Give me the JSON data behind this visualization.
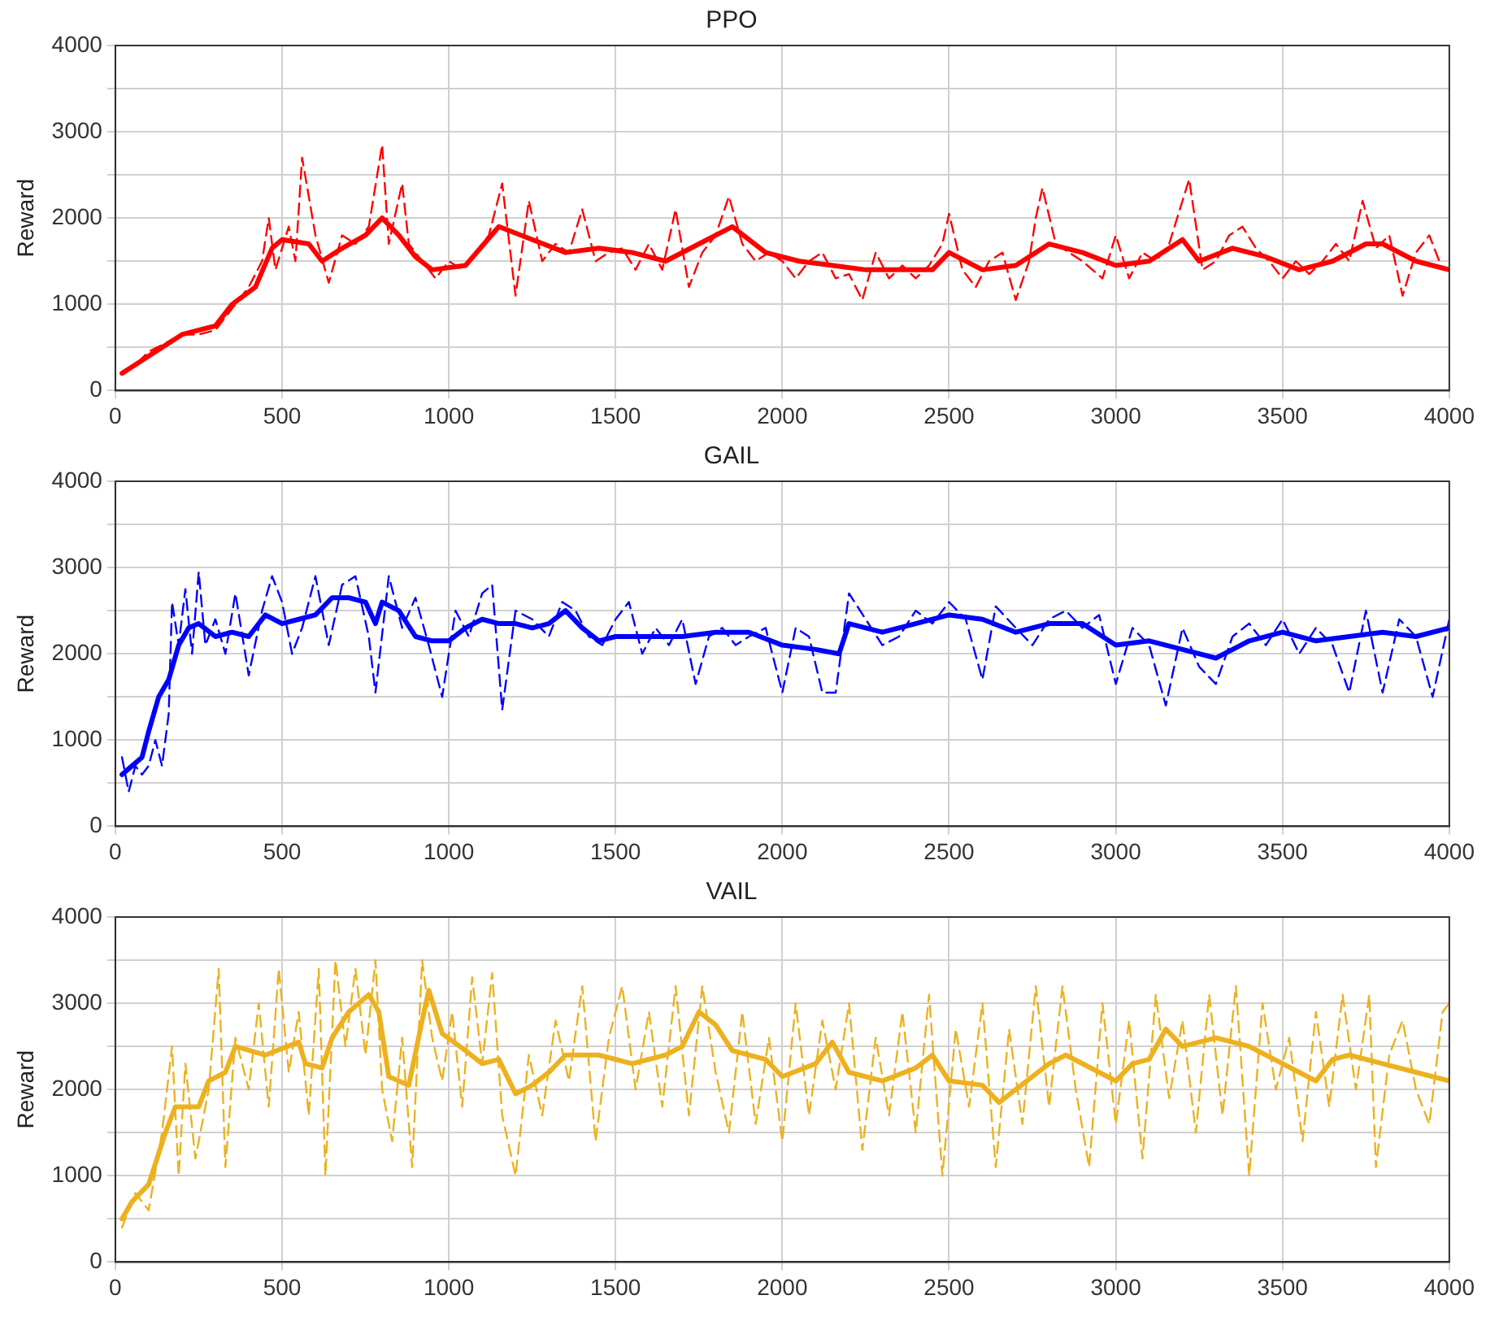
{
  "chart_data": [
    {
      "type": "line",
      "title": "PPO",
      "ylabel": "Reward",
      "xlim": [
        0,
        4000
      ],
      "xticks": [
        0,
        500,
        1000,
        1500,
        2000,
        2500,
        3000,
        3500,
        4000
      ],
      "ylim": [
        0,
        4000
      ],
      "yticks": [
        0,
        {
          "value": 500,
          "label": null
        },
        1000,
        {
          "value": 1500,
          "label": null
        },
        2000,
        {
          "value": 2500,
          "label": null
        },
        3000,
        {
          "value": 3500,
          "label": null
        },
        4000
      ],
      "grid": true,
      "legend": false,
      "marker": "none",
      "series": [
        {
          "color": "#ff0000",
          "line_style": "dashed",
          "x": [
            20,
            60,
            100,
            150,
            200,
            250,
            300,
            350,
            400,
            440,
            460,
            480,
            520,
            540,
            560,
            600,
            640,
            680,
            720,
            760,
            800,
            820,
            860,
            880,
            920,
            960,
            1000,
            1040,
            1080,
            1120,
            1160,
            1200,
            1240,
            1280,
            1320,
            1360,
            1400,
            1440,
            1480,
            1520,
            1560,
            1600,
            1640,
            1680,
            1720,
            1760,
            1800,
            1840,
            1880,
            1920,
            1960,
            2000,
            2040,
            2080,
            2120,
            2160,
            2200,
            2240,
            2280,
            2320,
            2360,
            2400,
            2440,
            2480,
            2500,
            2540,
            2580,
            2620,
            2660,
            2700,
            2740,
            2760,
            2780,
            2820,
            2860,
            2900,
            2960,
            3000,
            3040,
            3080,
            3120,
            3160,
            3200,
            3220,
            3260,
            3300,
            3340,
            3380,
            3420,
            3460,
            3500,
            3540,
            3580,
            3620,
            3660,
            3700,
            3740,
            3780,
            3820,
            3860,
            3900,
            3940,
            3980,
            4000
          ],
          "values": [
            220,
            300,
            450,
            550,
            650,
            650,
            700,
            950,
            1200,
            1500,
            2000,
            1400,
            1900,
            1500,
            2700,
            1800,
            1250,
            1800,
            1700,
            1900,
            2850,
            1700,
            2400,
            1700,
            1500,
            1300,
            1500,
            1400,
            1600,
            1800,
            2400,
            1100,
            2200,
            1500,
            1700,
            1600,
            2100,
            1500,
            1600,
            1650,
            1400,
            1700,
            1400,
            2100,
            1200,
            1600,
            1800,
            2250,
            1700,
            1500,
            1600,
            1500,
            1300,
            1500,
            1600,
            1300,
            1350,
            1050,
            1600,
            1300,
            1450,
            1300,
            1450,
            1700,
            2050,
            1400,
            1200,
            1500,
            1600,
            1050,
            1500,
            2000,
            2350,
            1700,
            1600,
            1500,
            1300,
            1800,
            1300,
            1600,
            1500,
            1700,
            2200,
            2450,
            1400,
            1500,
            1800,
            1900,
            1650,
            1500,
            1300,
            1500,
            1350,
            1500,
            1700,
            1500,
            2200,
            1650,
            1800,
            1100,
            1600,
            1800,
            1400,
            1400
          ]
        },
        {
          "color": "#ff0000",
          "line_style": "solid",
          "x": [
            20,
            100,
            200,
            300,
            350,
            420,
            470,
            500,
            580,
            620,
            680,
            750,
            800,
            850,
            900,
            950,
            1050,
            1150,
            1250,
            1350,
            1450,
            1550,
            1650,
            1750,
            1850,
            1950,
            2050,
            2150,
            2250,
            2350,
            2450,
            2500,
            2600,
            2700,
            2800,
            2900,
            3000,
            3100,
            3200,
            3250,
            3350,
            3450,
            3550,
            3650,
            3750,
            3800,
            3900,
            4000
          ],
          "values": [
            200,
            400,
            650,
            750,
            1000,
            1200,
            1650,
            1750,
            1700,
            1500,
            1650,
            1800,
            2000,
            1800,
            1550,
            1400,
            1450,
            1900,
            1750,
            1600,
            1650,
            1600,
            1500,
            1700,
            1900,
            1600,
            1500,
            1450,
            1400,
            1400,
            1400,
            1600,
            1400,
            1450,
            1700,
            1600,
            1450,
            1500,
            1750,
            1500,
            1650,
            1550,
            1400,
            1500,
            1700,
            1700,
            1500,
            1400
          ]
        }
      ]
    },
    {
      "type": "line",
      "title": "GAIL",
      "ylabel": "Reward",
      "xlim": [
        0,
        4000
      ],
      "xticks": [
        0,
        500,
        1000,
        1500,
        2000,
        2500,
        3000,
        3500,
        4000
      ],
      "ylim": [
        0,
        4000
      ],
      "yticks": [
        0,
        {
          "value": 500,
          "label": null
        },
        1000,
        {
          "value": 1500,
          "label": null
        },
        2000,
        {
          "value": 2500,
          "label": null
        },
        3000,
        {
          "value": 3500,
          "label": null
        },
        4000
      ],
      "grid": true,
      "legend": false,
      "marker": "none",
      "series": [
        {
          "color": "#0000ff",
          "line_style": "dashed",
          "x": [
            20,
            40,
            60,
            80,
            100,
            120,
            140,
            160,
            170,
            190,
            210,
            230,
            250,
            270,
            300,
            330,
            360,
            400,
            440,
            470,
            500,
            530,
            560,
            600,
            640,
            680,
            720,
            760,
            780,
            820,
            860,
            900,
            940,
            980,
            1020,
            1060,
            1100,
            1130,
            1160,
            1200,
            1250,
            1300,
            1340,
            1380,
            1420,
            1460,
            1500,
            1540,
            1580,
            1620,
            1660,
            1700,
            1740,
            1780,
            1820,
            1860,
            1900,
            1950,
            2000,
            2040,
            2080,
            2120,
            2160,
            2200,
            2250,
            2300,
            2350,
            2400,
            2450,
            2500,
            2550,
            2600,
            2640,
            2700,
            2750,
            2800,
            2850,
            2900,
            2950,
            3000,
            3050,
            3100,
            3150,
            3200,
            3250,
            3300,
            3350,
            3400,
            3450,
            3500,
            3550,
            3600,
            3650,
            3700,
            3750,
            3800,
            3850,
            3900,
            3950,
            4000
          ],
          "values": [
            800,
            400,
            700,
            600,
            700,
            1000,
            700,
            1300,
            2600,
            2100,
            2750,
            2000,
            2950,
            2100,
            2400,
            2000,
            2700,
            1750,
            2500,
            2900,
            2600,
            2000,
            2300,
            2900,
            2100,
            2800,
            2900,
            2200,
            1550,
            2900,
            2300,
            2650,
            2100,
            1500,
            2500,
            2200,
            2700,
            2800,
            1350,
            2500,
            2400,
            2200,
            2600,
            2500,
            2200,
            2100,
            2400,
            2600,
            2000,
            2300,
            2100,
            2400,
            1650,
            2200,
            2300,
            2100,
            2200,
            2300,
            1550,
            2300,
            2200,
            1550,
            1550,
            2700,
            2400,
            2100,
            2200,
            2500,
            2350,
            2600,
            2400,
            1700,
            2550,
            2300,
            2100,
            2400,
            2500,
            2300,
            2450,
            1650,
            2300,
            2100,
            1400,
            2300,
            1850,
            1650,
            2200,
            2350,
            2100,
            2400,
            2000,
            2300,
            2100,
            1550,
            2500,
            1550,
            2400,
            2200,
            1500,
            2400
          ]
        },
        {
          "color": "#0000ff",
          "line_style": "solid",
          "x": [
            20,
            50,
            80,
            100,
            130,
            160,
            190,
            220,
            250,
            300,
            350,
            400,
            450,
            500,
            550,
            600,
            650,
            700,
            750,
            780,
            800,
            850,
            900,
            950,
            1000,
            1050,
            1100,
            1150,
            1200,
            1250,
            1300,
            1350,
            1400,
            1450,
            1500,
            1600,
            1700,
            1800,
            1900,
            2000,
            2100,
            2170,
            2200,
            2300,
            2400,
            2500,
            2600,
            2700,
            2800,
            2900,
            3000,
            3100,
            3200,
            3300,
            3400,
            3500,
            3600,
            3700,
            3800,
            3900,
            4000
          ],
          "values": [
            600,
            700,
            800,
            1100,
            1500,
            1700,
            2100,
            2300,
            2350,
            2200,
            2250,
            2200,
            2450,
            2350,
            2400,
            2450,
            2650,
            2650,
            2600,
            2350,
            2600,
            2500,
            2200,
            2150,
            2150,
            2300,
            2400,
            2350,
            2350,
            2300,
            2350,
            2500,
            2300,
            2150,
            2200,
            2200,
            2200,
            2250,
            2250,
            2100,
            2050,
            2000,
            2350,
            2250,
            2350,
            2450,
            2400,
            2250,
            2350,
            2350,
            2100,
            2150,
            2050,
            1950,
            2150,
            2250,
            2150,
            2200,
            2250,
            2200,
            2300
          ]
        }
      ]
    },
    {
      "type": "line",
      "title": "VAIL",
      "ylabel": "Reward",
      "xlim": [
        0,
        4000
      ],
      "xticks": [
        0,
        500,
        1000,
        1500,
        2000,
        2500,
        3000,
        3500,
        4000
      ],
      "ylim": [
        0,
        4000
      ],
      "yticks": [
        0,
        {
          "value": 500,
          "label": null
        },
        1000,
        {
          "value": 1500,
          "label": null
        },
        2000,
        {
          "value": 2500,
          "label": null
        },
        3000,
        {
          "value": 3500,
          "label": null
        },
        4000
      ],
      "grid": true,
      "legend": false,
      "marker": "none",
      "series": [
        {
          "color": "#edb120",
          "line_style": "dashed",
          "x": [
            20,
            60,
            100,
            140,
            170,
            190,
            210,
            240,
            280,
            310,
            330,
            360,
            400,
            430,
            460,
            490,
            520,
            550,
            580,
            610,
            630,
            660,
            690,
            720,
            750,
            780,
            800,
            830,
            860,
            890,
            920,
            950,
            980,
            1010,
            1040,
            1070,
            1100,
            1130,
            1160,
            1200,
            1240,
            1280,
            1320,
            1360,
            1400,
            1440,
            1480,
            1520,
            1560,
            1600,
            1640,
            1680,
            1720,
            1760,
            1800,
            1840,
            1880,
            1920,
            1960,
            2000,
            2040,
            2080,
            2120,
            2160,
            2200,
            2240,
            2280,
            2320,
            2360,
            2400,
            2440,
            2480,
            2520,
            2560,
            2600,
            2640,
            2680,
            2720,
            2760,
            2800,
            2840,
            2880,
            2920,
            2960,
            3000,
            3040,
            3080,
            3120,
            3160,
            3200,
            3240,
            3280,
            3320,
            3360,
            3400,
            3440,
            3480,
            3520,
            3560,
            3600,
            3640,
            3680,
            3720,
            3760,
            3780,
            3820,
            3860,
            3900,
            3940,
            3980,
            4000
          ],
          "values": [
            400,
            800,
            600,
            1500,
            2500,
            1000,
            2300,
            1200,
            2000,
            3400,
            1100,
            2600,
            2000,
            3000,
            1800,
            3400,
            2200,
            2900,
            1700,
            3400,
            1000,
            3500,
            2500,
            3400,
            2400,
            3500,
            2000,
            1400,
            2600,
            1100,
            3500,
            2600,
            2100,
            2900,
            1800,
            3300,
            2300,
            3350,
            1700,
            1000,
            2400,
            1700,
            2800,
            2100,
            3200,
            1400,
            2600,
            3200,
            2000,
            2900,
            1800,
            3200,
            1700,
            3200,
            2200,
            1500,
            2900,
            1600,
            2600,
            1400,
            3000,
            1700,
            2800,
            2000,
            3000,
            1300,
            2600,
            1700,
            2900,
            1500,
            3100,
            1000,
            2700,
            1800,
            3000,
            1100,
            2700,
            1600,
            3200,
            1800,
            3200,
            2000,
            1100,
            3000,
            1600,
            2800,
            1200,
            3100,
            1900,
            2800,
            1500,
            3100,
            1700,
            3200,
            1000,
            3000,
            2000,
            2600,
            1400,
            2900,
            1800,
            3100,
            2000,
            3100,
            1100,
            2400,
            2800,
            2000,
            1600,
            2900,
            3000
          ]
        },
        {
          "color": "#edb120",
          "line_style": "solid",
          "x": [
            20,
            50,
            100,
            150,
            180,
            250,
            280,
            330,
            360,
            450,
            550,
            570,
            620,
            650,
            700,
            760,
            790,
            820,
            880,
            920,
            940,
            980,
            1050,
            1100,
            1150,
            1200,
            1250,
            1300,
            1350,
            1450,
            1550,
            1650,
            1700,
            1750,
            1800,
            1850,
            1950,
            2000,
            2100,
            2150,
            2200,
            2300,
            2400,
            2450,
            2500,
            2600,
            2650,
            2700,
            2800,
            2850,
            2950,
            3000,
            3050,
            3100,
            3150,
            3200,
            3300,
            3400,
            3500,
            3550,
            3600,
            3650,
            3700,
            3800,
            3900,
            4000
          ],
          "values": [
            500,
            700,
            900,
            1500,
            1800,
            1800,
            2100,
            2200,
            2500,
            2400,
            2550,
            2300,
            2250,
            2600,
            2900,
            3100,
            2900,
            2150,
            2050,
            2800,
            3150,
            2650,
            2450,
            2300,
            2350,
            1950,
            2050,
            2200,
            2400,
            2400,
            2300,
            2400,
            2500,
            2900,
            2750,
            2450,
            2350,
            2150,
            2300,
            2550,
            2200,
            2100,
            2250,
            2400,
            2100,
            2050,
            1850,
            2000,
            2300,
            2400,
            2200,
            2100,
            2300,
            2350,
            2700,
            2500,
            2600,
            2500,
            2300,
            2200,
            2100,
            2350,
            2400,
            2300,
            2200,
            2100
          ]
        }
      ]
    }
  ]
}
